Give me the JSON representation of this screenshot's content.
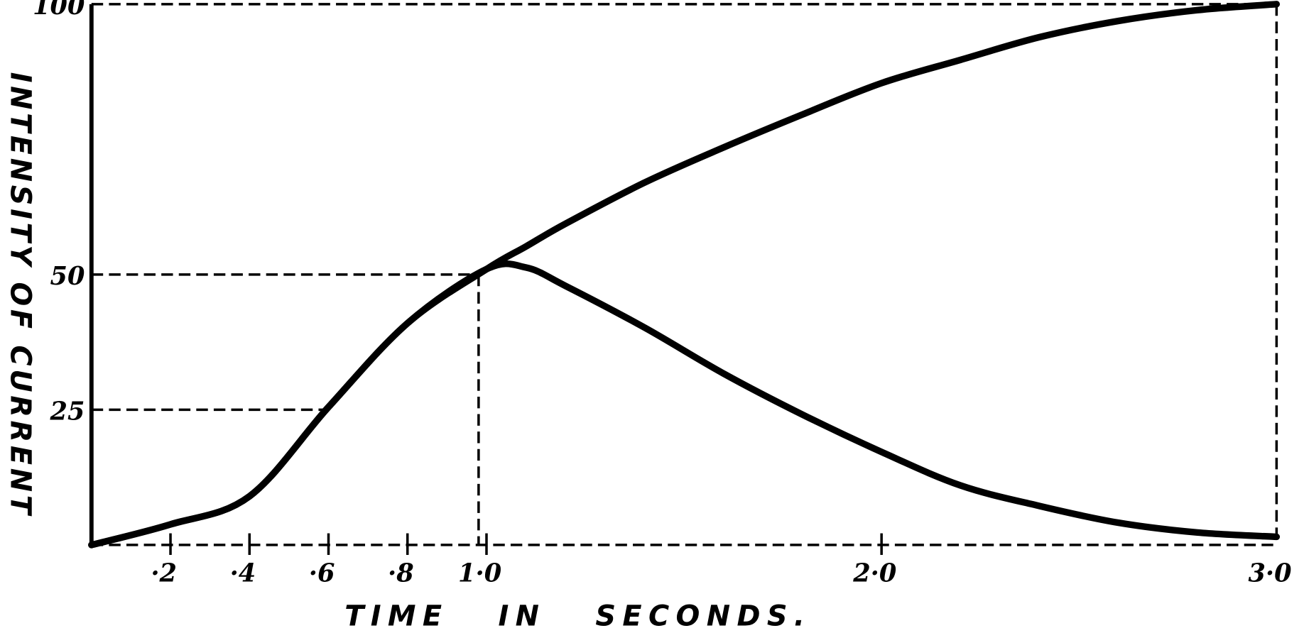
{
  "chart_data": {
    "type": "line",
    "x_label": "TIME IN SECONDS.",
    "y_label": "INTENSITY OF CURRENT",
    "x": [
      0,
      0.2,
      0.4,
      0.6,
      0.8,
      1.0,
      1.1,
      1.2,
      1.4,
      1.6,
      1.8,
      2.0,
      2.2,
      2.4,
      2.6,
      2.8,
      3.0
    ],
    "series": [
      {
        "color": "#000000",
        "values": [
          0,
          3.8,
          9,
          25.5,
          41,
          51,
          55.2,
          59.4,
          67,
          73.5,
          79.6,
          85.4,
          89.7,
          93.9,
          96.9,
          98.9,
          100
        ]
      },
      {
        "color": "#000000",
        "values": [
          0,
          3.8,
          9,
          25.5,
          41,
          51,
          51.3,
          47.9,
          40.2,
          31.7,
          24.1,
          17.2,
          11,
          7.2,
          4.1,
          2.3,
          1.5
        ]
      }
    ],
    "xlim": [
      0,
      3.0
    ],
    "ylim": [
      0,
      100
    ],
    "xticks": [
      {
        "value": 0.2,
        "label": "·2"
      },
      {
        "value": 0.4,
        "label": "·4"
      },
      {
        "value": 0.6,
        "label": "·6"
      },
      {
        "value": 0.8,
        "label": "·8"
      },
      {
        "value": 1.0,
        "label": "1·0"
      },
      {
        "value": 2.0,
        "label": "2·0"
      },
      {
        "value": 3.0,
        "label": "3·0"
      }
    ],
    "yticks": [
      25,
      50,
      100
    ]
  }
}
